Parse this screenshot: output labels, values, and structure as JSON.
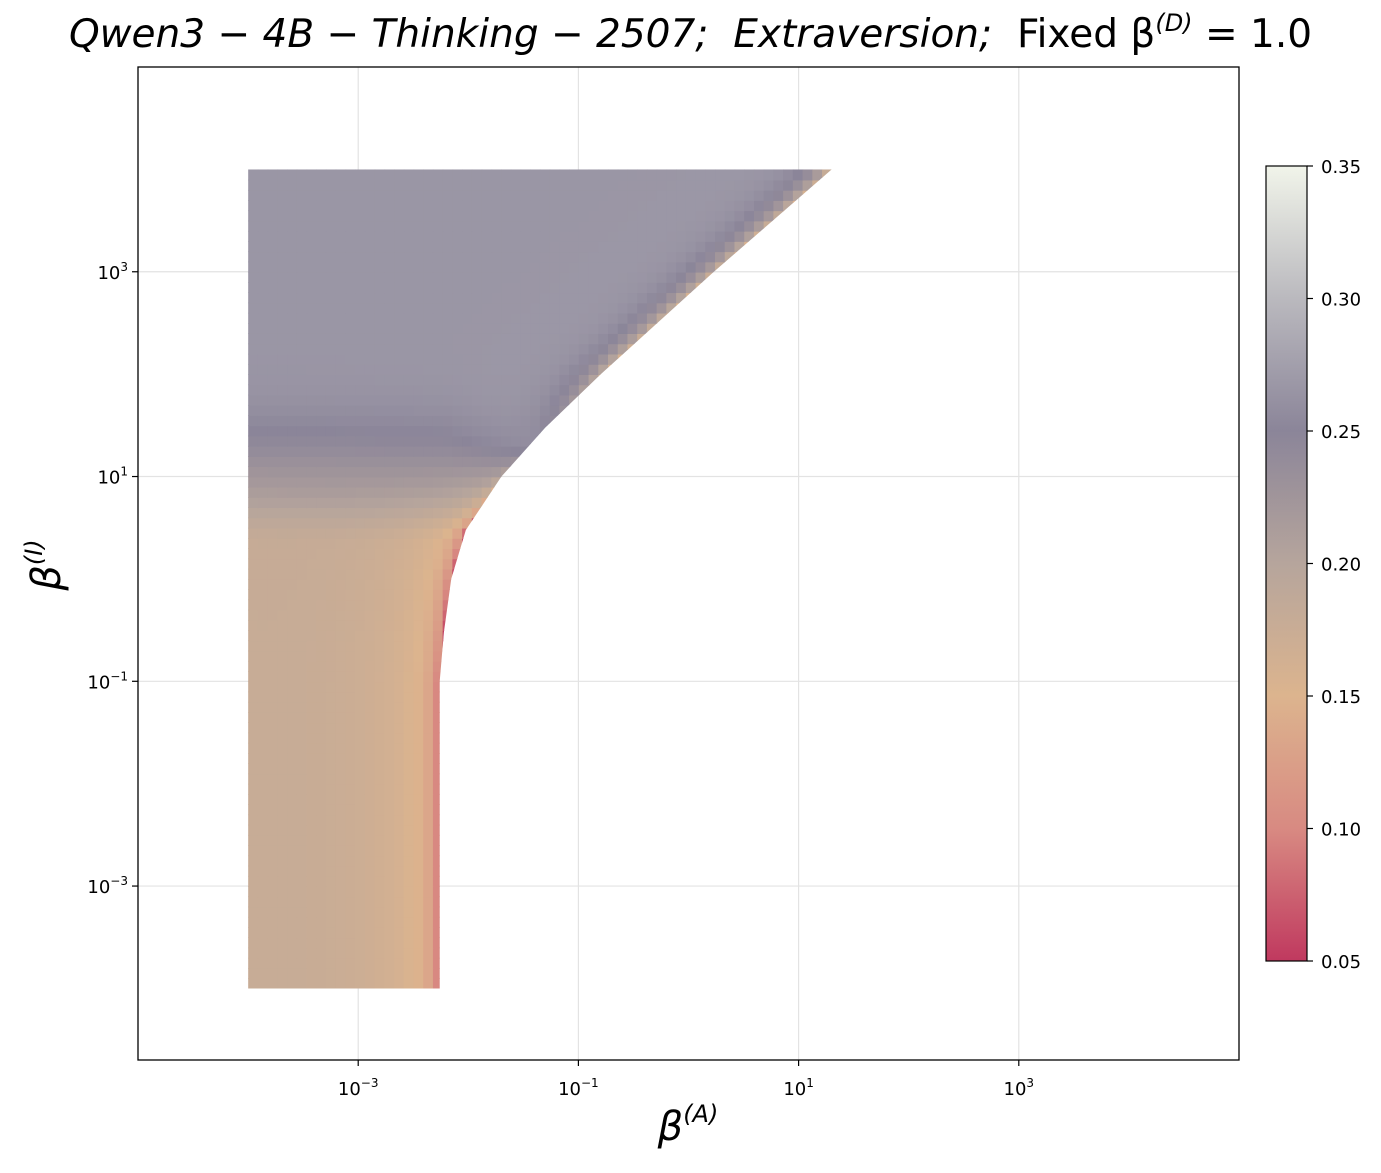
{
  "title": {
    "model": "Qwen3 − 4B − Thinking − 2507;",
    "trait": "Extraversion;",
    "fixed_prefix": "Fixed β",
    "fixed_sup": "(D)",
    "fixed_value": " = 1.0"
  },
  "chart_data": {
    "type": "heatmap",
    "xlabel": {
      "base": "β",
      "sup": "(A)"
    },
    "ylabel": {
      "base": "β",
      "sup": "(I)"
    },
    "x_scale": "log",
    "y_scale": "log",
    "xlim": [
      1e-05,
      100000
    ],
    "ylim": [
      2e-05,
      100000
    ],
    "x_ticks": [
      {
        "value": 0.001,
        "base": "10",
        "exp": "−3"
      },
      {
        "value": 0.1,
        "base": "10",
        "exp": "−1"
      },
      {
        "value": 10,
        "base": "10",
        "exp": "1"
      },
      {
        "value": 1000,
        "base": "10",
        "exp": "3"
      }
    ],
    "y_ticks": [
      {
        "value": 0.001,
        "base": "10",
        "exp": "−3"
      },
      {
        "value": 0.1,
        "base": "10",
        "exp": "−1"
      },
      {
        "value": 10,
        "base": "10",
        "exp": "1"
      },
      {
        "value": 1000,
        "base": "10",
        "exp": "3"
      }
    ],
    "grid": true,
    "data_extent": {
      "x": [
        0.0001,
        20
      ],
      "y": [
        0.0001,
        10000
      ]
    },
    "valid_region_note": "colored only where β(A) is below the upper-right boundary",
    "boundary": [
      {
        "y": 0.0001,
        "x": 0.0055
      },
      {
        "y": 0.1,
        "x": 0.0055
      },
      {
        "y": 0.3,
        "x": 0.006
      },
      {
        "y": 1,
        "x": 0.007
      },
      {
        "y": 3,
        "x": 0.0095
      },
      {
        "y": 10,
        "x": 0.02
      },
      {
        "y": 30,
        "x": 0.05
      },
      {
        "y": 100,
        "x": 0.16
      },
      {
        "y": 1000,
        "x": 1.7
      },
      {
        "y": 10000,
        "x": 20
      }
    ],
    "colorbar": {
      "min": 0.05,
      "max": 0.35,
      "ticks": [
        "0.05",
        "0.10",
        "0.15",
        "0.20",
        "0.25",
        "0.30",
        "0.35"
      ],
      "tick_values": [
        0.05,
        0.1,
        0.15,
        0.2,
        0.25,
        0.3,
        0.35
      ],
      "colors": [
        "#c0395f",
        "#d88a82",
        "#dcb48e",
        "#b6a59c",
        "#8b8599",
        "#bab9be",
        "#f1f4ea"
      ]
    }
  }
}
